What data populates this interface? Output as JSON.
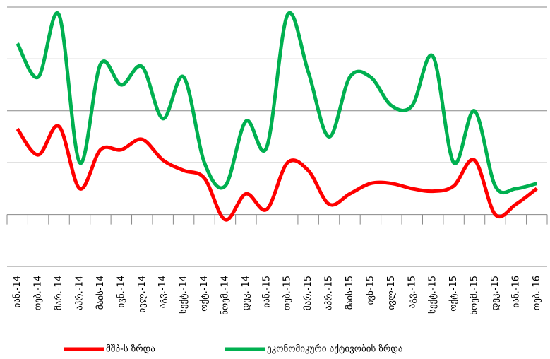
{
  "chart_data": {
    "type": "line",
    "categories": [
      "იან.-14",
      "თებ.-14",
      "მარ.-14",
      "აპრ.-14",
      "მაის-14",
      "ივნ.-14",
      "ივლ.-14",
      "აგვ.-14",
      "სექტ.-14",
      "ოქტ.-14",
      "ნოემ.-14",
      "დეკ.-14",
      "იან.-15",
      "თებ.-15",
      "მარ.-15",
      "აპრ.-15",
      "მაის-15",
      "ივნ-15",
      "ივლ-15",
      "აგვ.-15",
      "სექტ.-15",
      "ოქტ.-15",
      "ნოემ.-15",
      "დეკ.-15",
      "იან.-16",
      "თებ.-16"
    ],
    "series": [
      {
        "name": "მშპ-ს ზრდა",
        "color": "#ff0000",
        "values": [
          3.3,
          2.3,
          3.4,
          1.0,
          2.5,
          2.5,
          2.9,
          2.1,
          1.7,
          1.4,
          -0.2,
          0.8,
          0.2,
          2.0,
          1.7,
          0.4,
          0.8,
          1.2,
          1.2,
          1.0,
          0.9,
          1.1,
          2.1,
          0.0,
          0.4,
          1.0
        ]
      },
      {
        "name": "ეკონომიკური აქტივობის ზრდა",
        "color": "#00b050",
        "values": [
          6.6,
          5.3,
          7.7,
          2.0,
          5.8,
          5.0,
          5.7,
          3.7,
          5.3,
          2.0,
          1.1,
          3.6,
          2.6,
          7.7,
          5.5,
          3.0,
          5.3,
          5.3,
          4.2,
          4.2,
          6.1,
          2.0,
          4.0,
          1.1,
          1.0,
          1.2
        ]
      }
    ],
    "ylim": [
      -2,
      8
    ],
    "yticks": [
      -2,
      0,
      2,
      4,
      6,
      8
    ],
    "grid": true
  }
}
